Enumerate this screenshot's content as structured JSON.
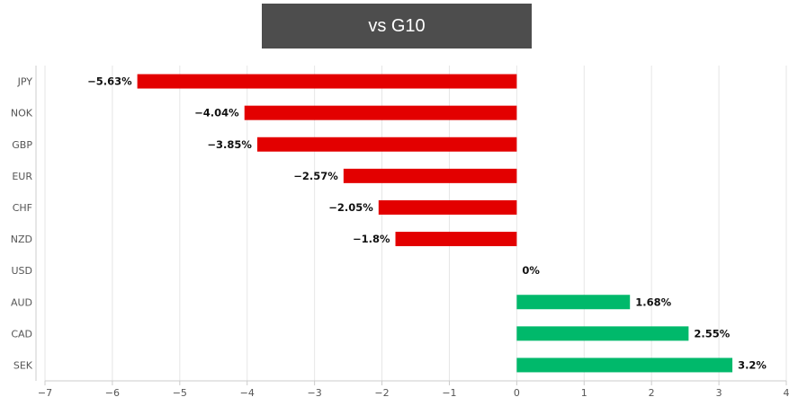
{
  "chart_data": {
    "type": "bar",
    "orientation": "horizontal",
    "title": "vs G10",
    "categories": [
      "JPY",
      "NOK",
      "GBP",
      "EUR",
      "CHF",
      "NZD",
      "USD",
      "AUD",
      "CAD",
      "SEK"
    ],
    "values": [
      -5.63,
      -4.04,
      -3.85,
      -2.57,
      -2.05,
      -1.8,
      0,
      1.68,
      2.55,
      3.2
    ],
    "data_labels": [
      "−5.63%",
      "−4.04%",
      "−3.85%",
      "−2.57%",
      "−2.05%",
      "−1.8%",
      "0%",
      "1.68%",
      "2.55%",
      "3.2%"
    ],
    "xlim": [
      -7,
      4
    ],
    "xticks": [
      -7,
      -6,
      -5,
      -4,
      -3,
      -2,
      -1,
      0,
      1,
      2,
      3,
      4
    ],
    "xtick_labels": [
      "−7",
      "−6",
      "−5",
      "−4",
      "−3",
      "−2",
      "−1",
      "0",
      "1",
      "2",
      "3",
      "4"
    ],
    "grid": "vertical",
    "colors": {
      "negative": "#e30000",
      "positive": "#00b96b",
      "title_bg": "#4d4d4d"
    }
  }
}
